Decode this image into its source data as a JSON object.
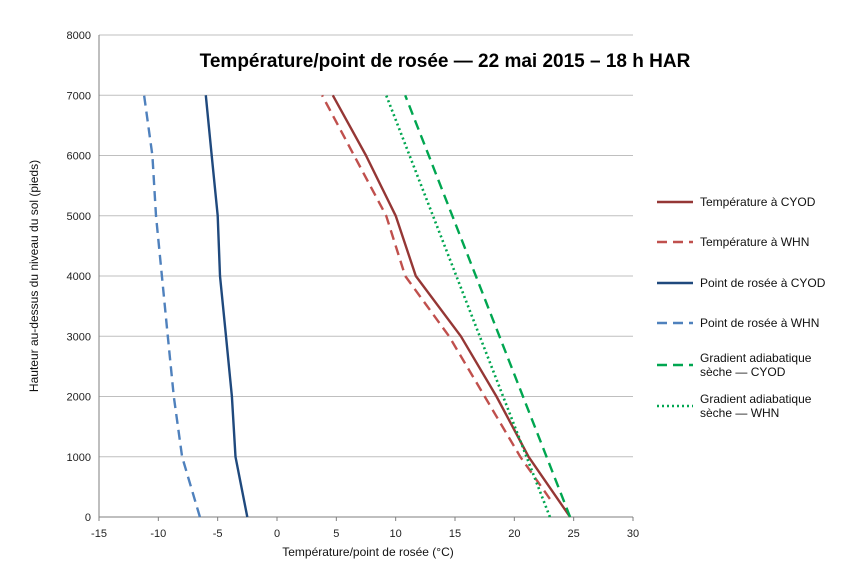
{
  "chart_data": {
    "type": "line",
    "title": "Température/point de rosée — 22 mai 2015 – 18 h HAR",
    "xlabel": "Température/point de rosée (°C)",
    "ylabel": "Hauteur au-dessus du niveau du sol (pieds)",
    "xlim": [
      -15,
      30
    ],
    "ylim": [
      0,
      8000
    ],
    "xticks": [
      "-15",
      "-10",
      "-5",
      "0",
      "5",
      "10",
      "15",
      "20",
      "25",
      "30"
    ],
    "yticks": [
      "0",
      "1000",
      "2000",
      "3000",
      "4000",
      "5000",
      "6000",
      "7000",
      "8000"
    ],
    "grid": "horizontal",
    "legend_position": "right",
    "series": [
      {
        "name": "Température à CYOD",
        "color": "#953735",
        "style": "solid",
        "points": [
          [
            24.7,
            0
          ],
          [
            21.2,
            1000
          ],
          [
            18.5,
            2000
          ],
          [
            15.5,
            3000
          ],
          [
            11.7,
            4000
          ],
          [
            10.0,
            5000
          ],
          [
            7.5,
            6000
          ],
          [
            4.7,
            7000
          ]
        ]
      },
      {
        "name": "Température à WHN",
        "color": "#C0504D",
        "style": "dashed",
        "points": [
          [
            23.0,
            300
          ],
          [
            20.5,
            1000
          ],
          [
            17.5,
            2000
          ],
          [
            14.5,
            3000
          ],
          [
            10.8,
            4000
          ],
          [
            9.2,
            5000
          ],
          [
            6.5,
            6000
          ],
          [
            3.8,
            7000
          ]
        ]
      },
      {
        "name": "Point de rosée à CYOD",
        "color": "#1F497D",
        "style": "solid",
        "points": [
          [
            -2.5,
            0
          ],
          [
            -3.5,
            1000
          ],
          [
            -3.8,
            2000
          ],
          [
            -4.3,
            3000
          ],
          [
            -4.8,
            4000
          ],
          [
            -5.0,
            5000
          ],
          [
            -5.5,
            6000
          ],
          [
            -6.0,
            7000
          ]
        ]
      },
      {
        "name": "Point de rosée à WHN",
        "color": "#4F81BD",
        "style": "dashed",
        "points": [
          [
            -6.5,
            0
          ],
          [
            -8.0,
            1000
          ],
          [
            -8.7,
            2000
          ],
          [
            -9.2,
            3000
          ],
          [
            -9.7,
            4000
          ],
          [
            -10.2,
            5000
          ],
          [
            -10.5,
            6000
          ],
          [
            -11.2,
            7000
          ]
        ]
      },
      {
        "name": "Gradient adiabatique sèche — CYOD",
        "color": "#00A650",
        "style": "dashed",
        "points": [
          [
            24.7,
            0
          ],
          [
            10.8,
            7000
          ]
        ]
      },
      {
        "name": "Gradient adiabatique sèche — WHN",
        "color": "#00A650",
        "style": "dotted",
        "points": [
          [
            23.0,
            0
          ],
          [
            9.2,
            7000
          ]
        ]
      }
    ]
  }
}
